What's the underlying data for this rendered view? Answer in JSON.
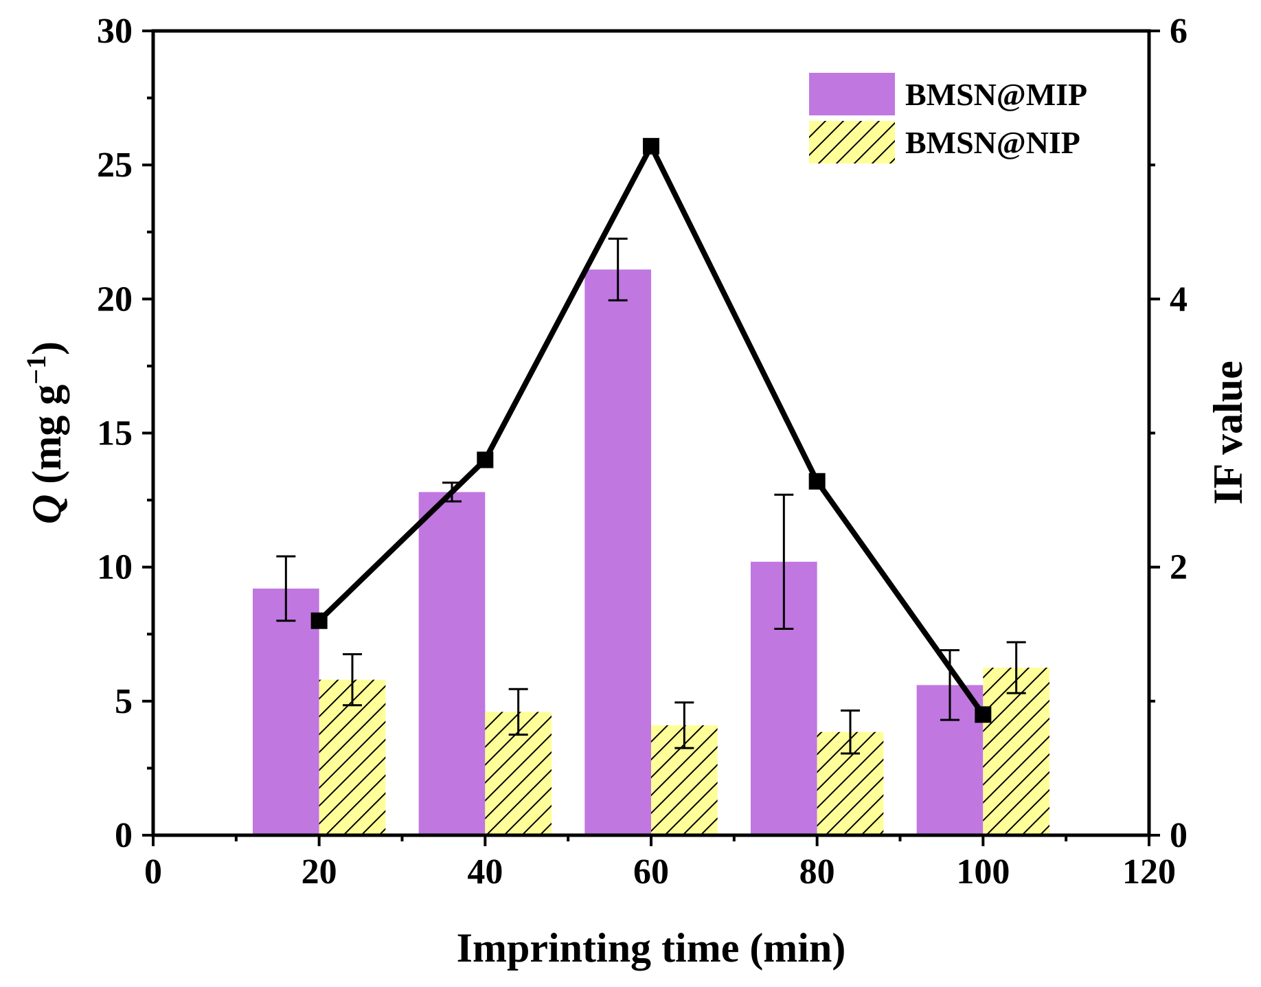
{
  "chart_data": {
    "type": "bar",
    "x_title": "Imprinting time (min)",
    "y_left_title": {
      "italic": "Q",
      "main": " (mg g",
      "sup": "−1",
      "close": ")"
    },
    "y_right_title": "IF value",
    "x_ticks": [
      "0",
      "20",
      "40",
      "60",
      "80",
      "100",
      "120"
    ],
    "y_left_ticks": [
      "0",
      "5",
      "10",
      "15",
      "20",
      "25",
      "30"
    ],
    "y_right_ticks": [
      "0",
      "2",
      "4",
      "6"
    ],
    "x_range": [
      0,
      120
    ],
    "y_left_range": [
      0,
      30
    ],
    "y_right_range": [
      0,
      6
    ],
    "categories": [
      20,
      40,
      60,
      80,
      100
    ],
    "series": [
      {
        "name": "BMSN@MIP",
        "color": "#c077e0",
        "values": [
          9.2,
          12.8,
          21.1,
          10.2,
          5.6
        ],
        "errors": [
          1.2,
          0.35,
          1.15,
          2.5,
          1.3
        ],
        "x_offset": -4
      },
      {
        "name": "BMSN@NIP",
        "color": "#ffff99",
        "hatch": "diagonal",
        "values": [
          5.8,
          4.6,
          4.1,
          3.85,
          6.25
        ],
        "errors": [
          0.95,
          0.85,
          0.85,
          0.8,
          0.95
        ],
        "x_offset": 4
      }
    ],
    "line_series": {
      "name": "IF value",
      "axis": "right",
      "color": "#000000",
      "x": [
        20,
        40,
        60,
        80,
        100
      ],
      "y": [
        1.6,
        2.8,
        5.14,
        2.64,
        0.9
      ]
    },
    "legend": {
      "position": "top-right",
      "entries": [
        "BMSN@MIP",
        "BMSN@NIP"
      ]
    }
  }
}
